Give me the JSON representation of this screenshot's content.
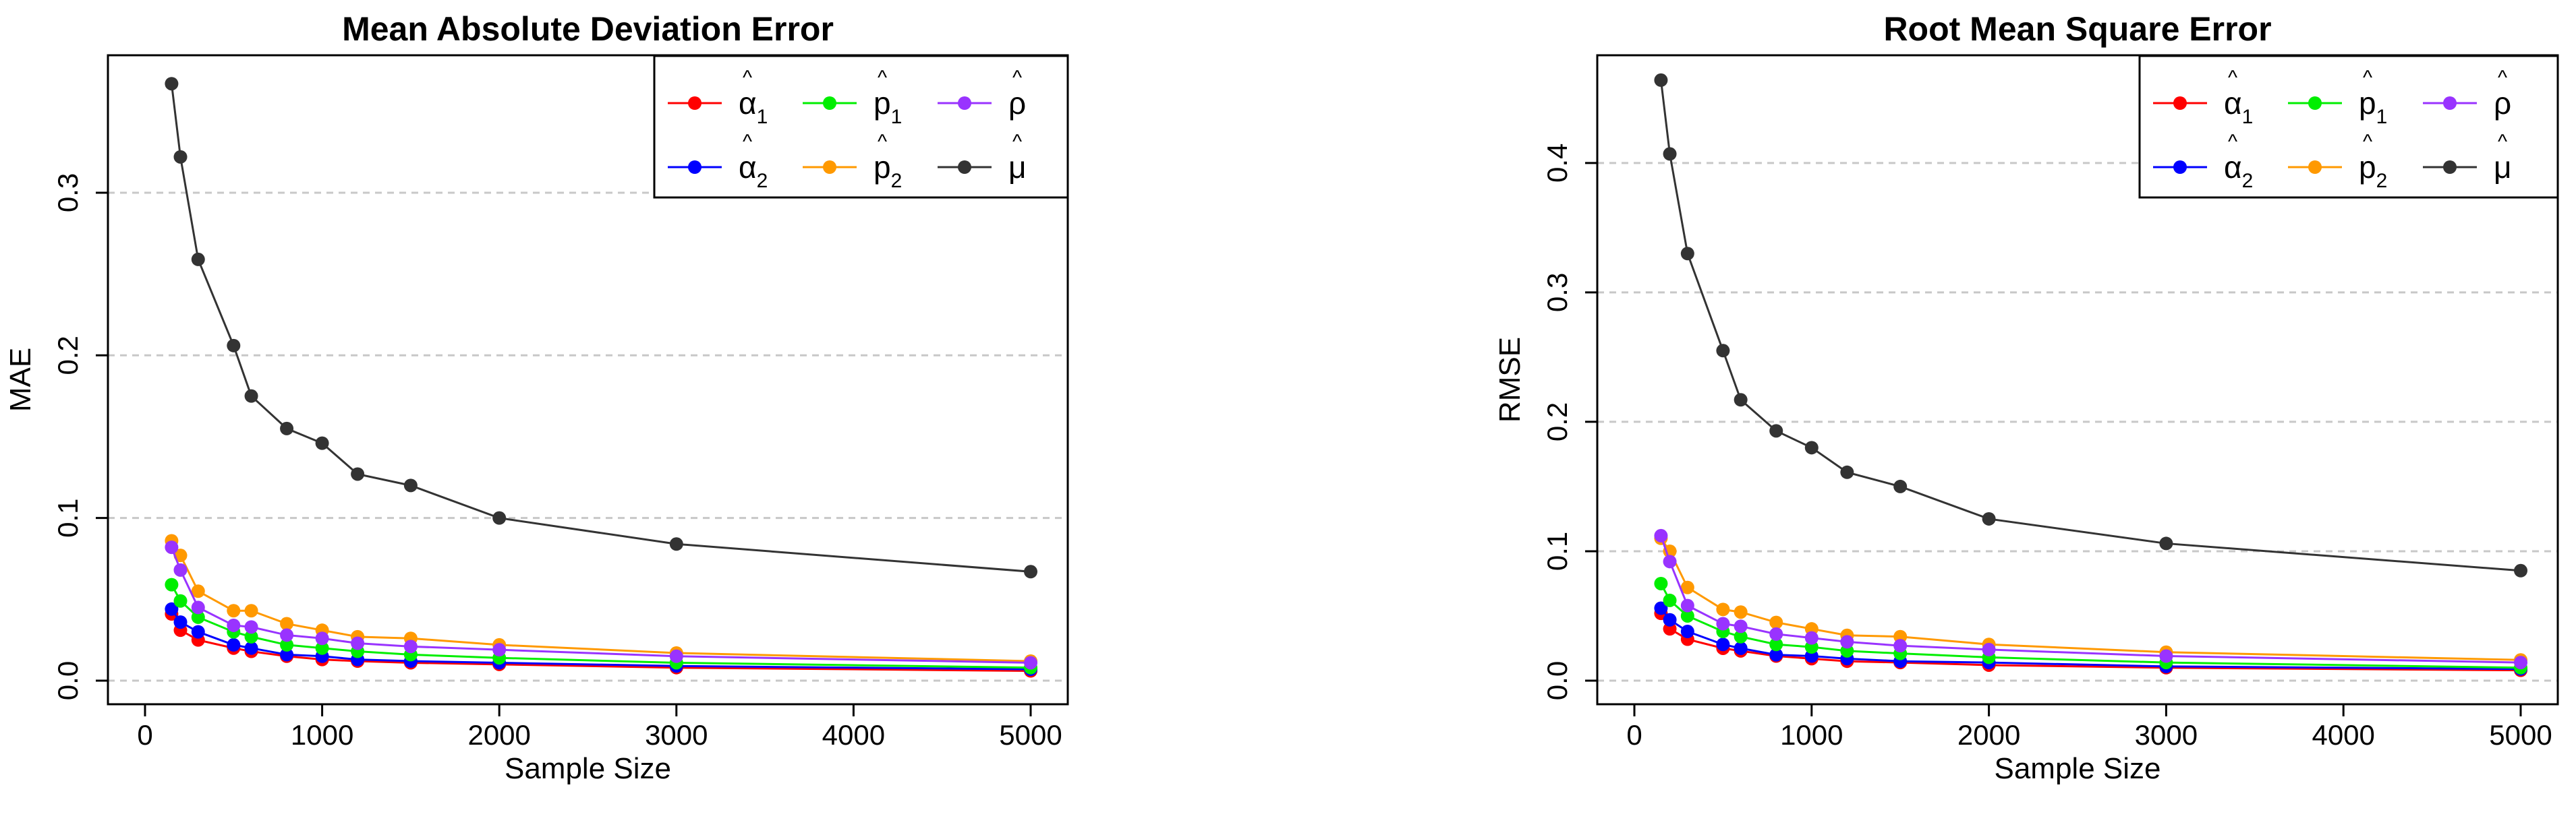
{
  "chart_data": [
    {
      "type": "line",
      "title": "Mean Absolute Deviation Error",
      "xlabel": "Sample Size",
      "ylabel": "MAE",
      "xlim": [
        0,
        5000
      ],
      "ylim": [
        0,
        0.37
      ],
      "xticks": [
        "0",
        "1000",
        "2000",
        "3000",
        "4000",
        "5000"
      ],
      "yticks": [
        "0.0",
        "0.1",
        "0.2",
        "0.3"
      ],
      "grid": "horizontal dashed",
      "legend_position": "top-right",
      "x": [
        150,
        200,
        300,
        500,
        600,
        800,
        1000,
        1200,
        1500,
        2000,
        3000,
        5000
      ],
      "series": [
        {
          "name": "α₁",
          "base": "α",
          "sub": "1",
          "color": "#ff0000",
          "values": [
            0.041,
            0.031,
            0.025,
            0.02,
            0.018,
            0.015,
            0.013,
            0.012,
            0.011,
            0.01,
            0.008,
            0.006
          ]
        },
        {
          "name": "α₂",
          "base": "α",
          "sub": "2",
          "color": "#0000ff",
          "values": [
            0.044,
            0.036,
            0.03,
            0.022,
            0.02,
            0.016,
            0.015,
            0.013,
            0.012,
            0.011,
            0.009,
            0.007
          ]
        },
        {
          "name": "p₁",
          "base": "p",
          "sub": "1",
          "color": "#00ee00",
          "values": [
            0.059,
            0.049,
            0.039,
            0.03,
            0.027,
            0.022,
            0.02,
            0.018,
            0.016,
            0.014,
            0.011,
            0.008
          ]
        },
        {
          "name": "p₂",
          "base": "p",
          "sub": "2",
          "color": "#ff9900",
          "values": [
            0.086,
            0.077,
            0.055,
            0.043,
            0.043,
            0.035,
            0.031,
            0.027,
            0.026,
            0.022,
            0.017,
            0.012
          ]
        },
        {
          "name": "ρ",
          "base": "ρ",
          "sub": "",
          "color": "#9933ff",
          "values": [
            0.082,
            0.068,
            0.045,
            0.034,
            0.033,
            0.028,
            0.026,
            0.023,
            0.021,
            0.019,
            0.015,
            0.011
          ]
        },
        {
          "name": "μ",
          "base": "μ",
          "sub": "",
          "color": "#333333",
          "values": [
            0.367,
            0.322,
            0.259,
            0.206,
            0.175,
            0.155,
            0.146,
            0.127,
            0.12,
            0.1,
            0.084,
            0.067
          ]
        }
      ]
    },
    {
      "type": "line",
      "title": "Root Mean Square Error",
      "xlabel": "Sample Size",
      "ylabel": "RMSE",
      "xlim": [
        0,
        5000
      ],
      "ylim": [
        0,
        0.465
      ],
      "xticks": [
        "0",
        "1000",
        "2000",
        "3000",
        "4000",
        "5000"
      ],
      "yticks": [
        "0.0",
        "0.1",
        "0.2",
        "0.3",
        "0.4"
      ],
      "grid": "horizontal dashed",
      "legend_position": "top-right",
      "x": [
        150,
        200,
        300,
        500,
        600,
        800,
        1000,
        1200,
        1500,
        2000,
        3000,
        5000
      ],
      "series": [
        {
          "name": "α₁",
          "base": "α",
          "sub": "1",
          "color": "#ff0000",
          "values": [
            0.052,
            0.04,
            0.032,
            0.025,
            0.023,
            0.019,
            0.017,
            0.015,
            0.014,
            0.012,
            0.01,
            0.008
          ]
        },
        {
          "name": "α₂",
          "base": "α",
          "sub": "2",
          "color": "#0000ff",
          "values": [
            0.056,
            0.047,
            0.038,
            0.028,
            0.025,
            0.02,
            0.019,
            0.017,
            0.015,
            0.014,
            0.011,
            0.009
          ]
        },
        {
          "name": "p₁",
          "base": "p",
          "sub": "1",
          "color": "#00ee00",
          "values": [
            0.075,
            0.062,
            0.05,
            0.038,
            0.034,
            0.028,
            0.026,
            0.023,
            0.021,
            0.018,
            0.014,
            0.01
          ]
        },
        {
          "name": "p₂",
          "base": "p",
          "sub": "2",
          "color": "#ff9900",
          "values": [
            0.11,
            0.1,
            0.072,
            0.055,
            0.053,
            0.045,
            0.04,
            0.035,
            0.034,
            0.028,
            0.022,
            0.016
          ]
        },
        {
          "name": "ρ",
          "base": "ρ",
          "sub": "",
          "color": "#9933ff",
          "values": [
            0.112,
            0.092,
            0.058,
            0.044,
            0.042,
            0.036,
            0.033,
            0.03,
            0.027,
            0.024,
            0.019,
            0.014
          ]
        },
        {
          "name": "μ",
          "base": "μ",
          "sub": "",
          "color": "#333333",
          "values": [
            0.464,
            0.407,
            0.33,
            0.255,
            0.217,
            0.193,
            0.18,
            0.161,
            0.15,
            0.125,
            0.106,
            0.085
          ]
        }
      ]
    }
  ]
}
